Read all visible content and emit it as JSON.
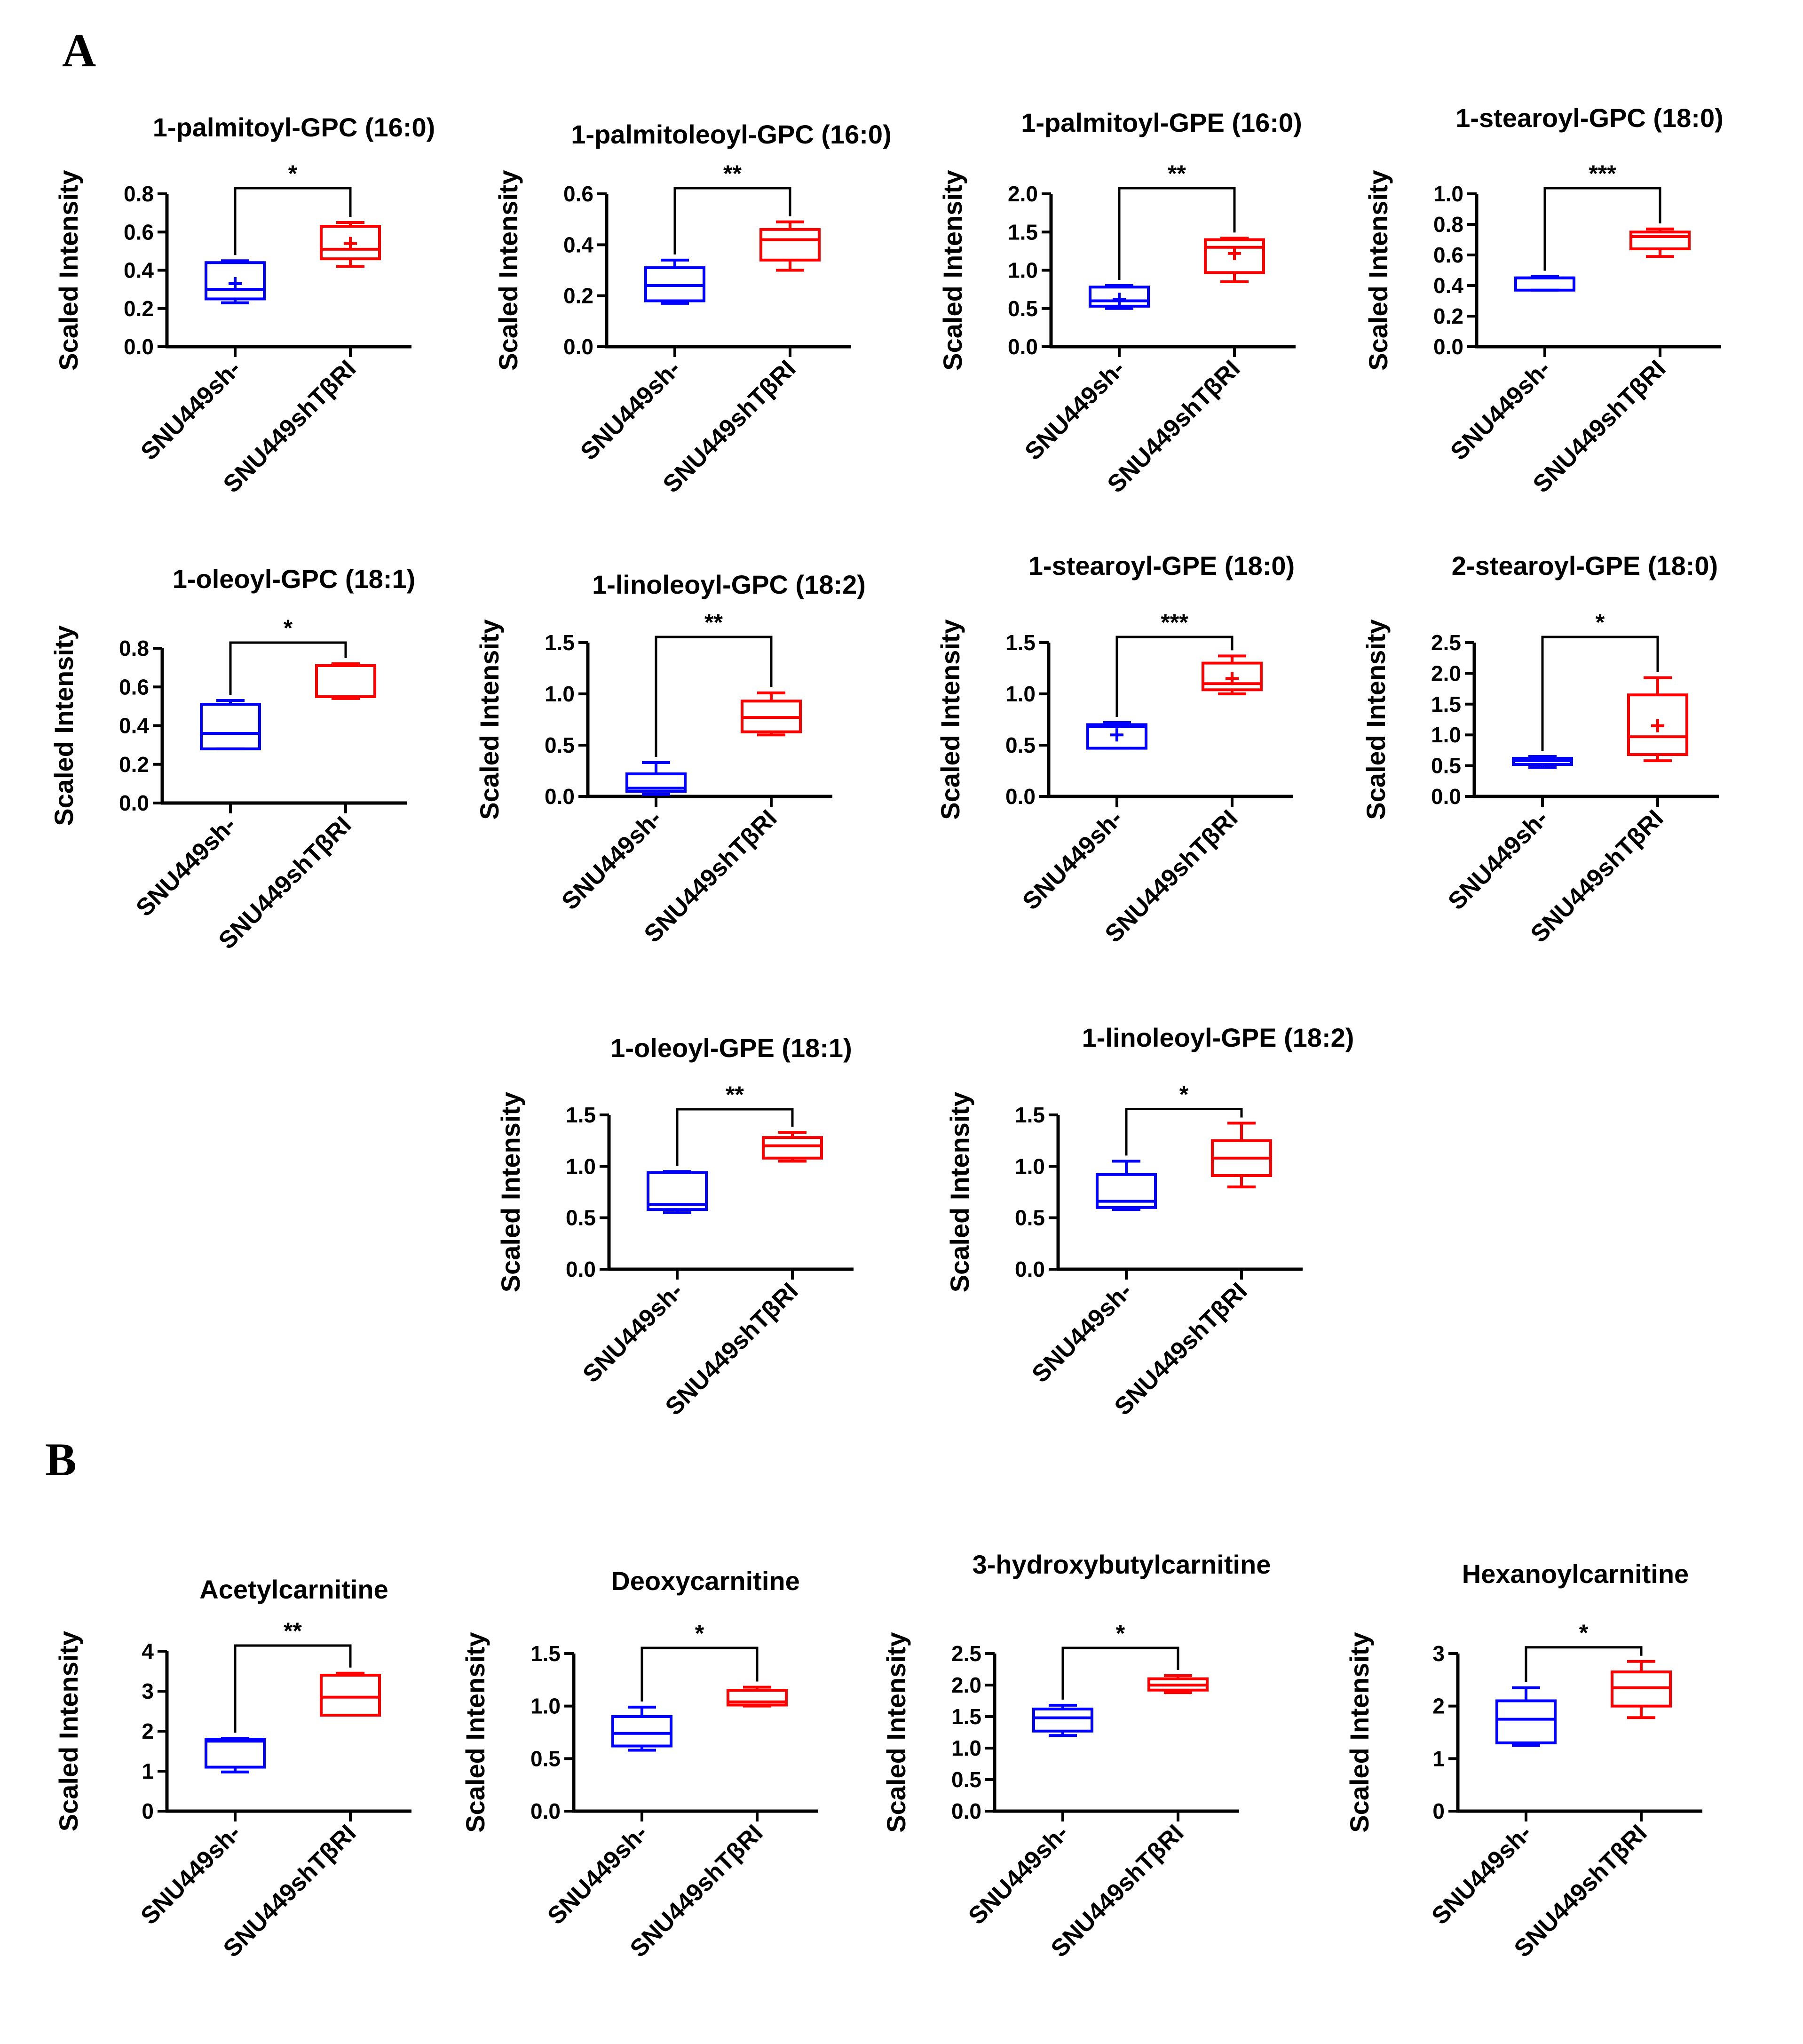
{
  "panel_labels": {
    "a": "A",
    "b": "B"
  },
  "colors": {
    "group1": "#0000ff",
    "group2": "#ff0000",
    "axis": "#000000"
  },
  "common": {
    "ylabel": "Scaled Intensity",
    "categories": [
      "SNU449sh-",
      "SNU449shTβRI"
    ]
  },
  "chart_data": [
    {
      "type": "box",
      "title": "1-palmitoyl-GPC (16:0)",
      "ylabel": "Scaled Intensity",
      "categories": [
        "SNU449sh-",
        "SNU449shTβRI"
      ],
      "ylim": [
        0,
        0.8
      ],
      "yticks": [
        0,
        0.2,
        0.4,
        0.6,
        0.8
      ],
      "ytick_labels": [
        "0.0",
        "0.2",
        "0.4",
        "0.6",
        "0.8"
      ],
      "series": [
        {
          "name": "SNU449sh-",
          "min": 0.23,
          "q1": 0.25,
          "median": 0.3,
          "q3": 0.44,
          "max": 0.45,
          "mean": 0.33
        },
        {
          "name": "SNU449shTβRI",
          "min": 0.42,
          "q1": 0.46,
          "median": 0.51,
          "q3": 0.63,
          "max": 0.65,
          "mean": 0.54
        }
      ],
      "significance": "*"
    },
    {
      "type": "box",
      "title": "1-palmitoleoyl-GPC (16:0)",
      "ylabel": "Scaled Intensity",
      "categories": [
        "SNU449sh-",
        "SNU449shTβRI"
      ],
      "ylim": [
        0,
        0.6
      ],
      "yticks": [
        0,
        0.2,
        0.4,
        0.6
      ],
      "ytick_labels": [
        "0.0",
        "0.2",
        "0.4",
        "0.6"
      ],
      "series": [
        {
          "name": "SNU449sh-",
          "min": 0.17,
          "q1": 0.18,
          "median": 0.24,
          "q3": 0.31,
          "max": 0.34,
          "mean": null
        },
        {
          "name": "SNU449shTβRI",
          "min": 0.3,
          "q1": 0.34,
          "median": 0.42,
          "q3": 0.46,
          "max": 0.49,
          "mean": null
        }
      ],
      "significance": "**"
    },
    {
      "type": "box",
      "title": "1-palmitoyl-GPE (16:0)",
      "ylabel": "Scaled Intensity",
      "categories": [
        "SNU449sh-",
        "SNU449shTβRI"
      ],
      "ylim": [
        0,
        2.0
      ],
      "yticks": [
        0,
        0.5,
        1,
        1.5,
        2
      ],
      "ytick_labels": [
        "0.0",
        "0.5",
        "1.0",
        "1.5",
        "2.0"
      ],
      "series": [
        {
          "name": "SNU449sh-",
          "min": 0.5,
          "q1": 0.53,
          "median": 0.6,
          "q3": 0.78,
          "max": 0.8,
          "mean": 0.62
        },
        {
          "name": "SNU449shTβRI",
          "min": 0.85,
          "q1": 0.97,
          "median": 1.3,
          "q3": 1.4,
          "max": 1.42,
          "mean": 1.22
        }
      ],
      "significance": "**"
    },
    {
      "type": "box",
      "title": "1-stearoyl-GPC (18:0)",
      "ylabel": "Scaled Intensity",
      "categories": [
        "SNU449sh-",
        "SNU449shTβRI"
      ],
      "ylim": [
        0,
        1.0
      ],
      "yticks": [
        0,
        0.2,
        0.4,
        0.6,
        0.8,
        1.0
      ],
      "ytick_labels": [
        "0.0",
        "0.2",
        "0.4",
        "0.6",
        "0.8",
        "1.0"
      ],
      "series": [
        {
          "name": "SNU449sh-",
          "min": 0.37,
          "q1": 0.37,
          "median": 0.45,
          "q3": 0.45,
          "max": 0.46,
          "mean": null
        },
        {
          "name": "SNU449shTβRI",
          "min": 0.59,
          "q1": 0.64,
          "median": 0.72,
          "q3": 0.75,
          "max": 0.77,
          "mean": null
        }
      ],
      "significance": "***"
    },
    {
      "type": "box",
      "title": "1-oleoyl-GPC (18:1)",
      "ylabel": "Scaled Intensity",
      "categories": [
        "SNU449sh-",
        "SNU449shTβRI"
      ],
      "ylim": [
        0,
        0.8
      ],
      "yticks": [
        0,
        0.2,
        0.4,
        0.6,
        0.8
      ],
      "ytick_labels": [
        "0.0",
        "0.2",
        "0.4",
        "0.6",
        "0.8"
      ],
      "series": [
        {
          "name": "SNU449sh-",
          "min": 0.28,
          "q1": 0.28,
          "median": 0.36,
          "q3": 0.51,
          "max": 0.53,
          "mean": null
        },
        {
          "name": "SNU449shTβRI",
          "min": 0.54,
          "q1": 0.55,
          "median": 0.55,
          "q3": 0.71,
          "max": 0.72,
          "mean": null
        }
      ],
      "significance": "*"
    },
    {
      "type": "box",
      "title": "1-linoleoyl-GPC (18:2)",
      "ylabel": "Scaled Intensity",
      "categories": [
        "SNU449sh-",
        "SNU449shTβRI"
      ],
      "ylim": [
        0,
        1.5
      ],
      "yticks": [
        0,
        0.5,
        1,
        1.5
      ],
      "ytick_labels": [
        "0.0",
        "0.5",
        "1.0",
        "1.5"
      ],
      "series": [
        {
          "name": "SNU449sh-",
          "min": 0.02,
          "q1": 0.05,
          "median": 0.08,
          "q3": 0.22,
          "max": 0.33,
          "mean": null
        },
        {
          "name": "SNU449shTβRI",
          "min": 0.6,
          "q1": 0.63,
          "median": 0.77,
          "q3": 0.93,
          "max": 1.01,
          "mean": null
        }
      ],
      "significance": "**"
    },
    {
      "type": "box",
      "title": "1-stearoyl-GPE (18:0)",
      "ylabel": "Scaled Intensity",
      "categories": [
        "SNU449sh-",
        "SNU449shTβRI"
      ],
      "ylim": [
        0,
        1.5
      ],
      "yticks": [
        0,
        0.5,
        1,
        1.5
      ],
      "ytick_labels": [
        "0.0",
        "0.5",
        "1.0",
        "1.5"
      ],
      "series": [
        {
          "name": "SNU449sh-",
          "min": 0.47,
          "q1": 0.47,
          "median": 0.68,
          "q3": 0.7,
          "max": 0.72,
          "mean": 0.6
        },
        {
          "name": "SNU449shTβRI",
          "min": 1.0,
          "q1": 1.04,
          "median": 1.1,
          "q3": 1.3,
          "max": 1.37,
          "mean": 1.15
        }
      ],
      "significance": "***"
    },
    {
      "type": "box",
      "title": "2-stearoyl-GPE (18:0)",
      "ylabel": "Scaled Intensity",
      "categories": [
        "SNU449sh-",
        "SNU449shTβRI"
      ],
      "ylim": [
        0,
        2.5
      ],
      "yticks": [
        0,
        0.5,
        1,
        1.5,
        2,
        2.5
      ],
      "ytick_labels": [
        "0.0",
        "0.5",
        "1.0",
        "1.5",
        "2.0",
        "2.5"
      ],
      "series": [
        {
          "name": "SNU449sh-",
          "min": 0.47,
          "q1": 0.52,
          "median": 0.58,
          "q3": 0.62,
          "max": 0.65,
          "mean": null
        },
        {
          "name": "SNU449shTβRI",
          "min": 0.58,
          "q1": 0.68,
          "median": 0.97,
          "q3": 1.65,
          "max": 1.93,
          "mean": 1.15
        }
      ],
      "significance": "*"
    },
    {
      "type": "box",
      "title": "1-oleoyl-GPE (18:1)",
      "ylabel": "Scaled Intensity",
      "categories": [
        "SNU449sh-",
        "SNU449shTβRI"
      ],
      "ylim": [
        0,
        1.5
      ],
      "yticks": [
        0,
        0.5,
        1,
        1.5
      ],
      "ytick_labels": [
        "0.0",
        "0.5",
        "1.0",
        "1.5"
      ],
      "series": [
        {
          "name": "SNU449sh-",
          "min": 0.55,
          "q1": 0.58,
          "median": 0.63,
          "q3": 0.94,
          "max": 0.95,
          "mean": null
        },
        {
          "name": "SNU449shTβRI",
          "min": 1.05,
          "q1": 1.08,
          "median": 1.2,
          "q3": 1.28,
          "max": 1.33,
          "mean": null
        }
      ],
      "significance": "**"
    },
    {
      "type": "box",
      "title": "1-linoleoyl-GPE (18:2)",
      "ylabel": "Scaled Intensity",
      "categories": [
        "SNU449sh-",
        "SNU449shTβRI"
      ],
      "ylim": [
        0,
        1.5
      ],
      "yticks": [
        0,
        0.5,
        1,
        1.5
      ],
      "ytick_labels": [
        "0.0",
        "0.5",
        "1.0",
        "1.5"
      ],
      "series": [
        {
          "name": "SNU449sh-",
          "min": 0.58,
          "q1": 0.6,
          "median": 0.66,
          "q3": 0.92,
          "max": 1.05,
          "mean": null
        },
        {
          "name": "SNU449shTβRI",
          "min": 0.8,
          "q1": 0.91,
          "median": 1.08,
          "q3": 1.25,
          "max": 1.42,
          "mean": null
        }
      ],
      "significance": "*"
    },
    {
      "type": "box",
      "title": "Acetylcarnitine",
      "ylabel": "Scaled Intensity",
      "categories": [
        "SNU449sh-",
        "SNU449shTβRI"
      ],
      "ylim": [
        0,
        4
      ],
      "yticks": [
        0,
        1,
        2,
        3,
        4
      ],
      "ytick_labels": [
        "0",
        "1",
        "2",
        "3",
        "4"
      ],
      "series": [
        {
          "name": "SNU449sh-",
          "min": 0.98,
          "q1": 1.1,
          "median": 1.75,
          "q3": 1.8,
          "max": 1.82,
          "mean": null
        },
        {
          "name": "SNU449shTβRI",
          "min": 2.4,
          "q1": 2.4,
          "median": 2.85,
          "q3": 3.4,
          "max": 3.45,
          "mean": null
        }
      ],
      "significance": "**"
    },
    {
      "type": "box",
      "title": "Deoxycarnitine",
      "ylabel": "Scaled Intensity",
      "categories": [
        "SNU449sh-",
        "SNU449shTβRI"
      ],
      "ylim": [
        0,
        1.5
      ],
      "yticks": [
        0,
        0.5,
        1,
        1.5
      ],
      "ytick_labels": [
        "0.0",
        "0.5",
        "1.0",
        "1.5"
      ],
      "series": [
        {
          "name": "SNU449sh-",
          "min": 0.58,
          "q1": 0.62,
          "median": 0.74,
          "q3": 0.9,
          "max": 0.99,
          "mean": null
        },
        {
          "name": "SNU449shTβRI",
          "min": 1.0,
          "q1": 1.01,
          "median": 1.04,
          "q3": 1.15,
          "max": 1.18,
          "mean": null
        }
      ],
      "significance": "*"
    },
    {
      "type": "box",
      "title": "3-hydroxybutylcarnitine",
      "ylabel": "Scaled Intensity",
      "categories": [
        "SNU449sh-",
        "SNU449shTβRI"
      ],
      "ylim": [
        0,
        2.5
      ],
      "yticks": [
        0,
        0.5,
        1,
        1.5,
        2,
        2.5
      ],
      "ytick_labels": [
        "0.0",
        "0.5",
        "1.0",
        "1.5",
        "2.0",
        "2.5"
      ],
      "series": [
        {
          "name": "SNU449sh-",
          "min": 1.2,
          "q1": 1.27,
          "median": 1.48,
          "q3": 1.62,
          "max": 1.68,
          "mean": null
        },
        {
          "name": "SNU449shTβRI",
          "min": 1.88,
          "q1": 1.92,
          "median": 2.0,
          "q3": 2.1,
          "max": 2.15,
          "mean": null
        }
      ],
      "significance": "*"
    },
    {
      "type": "box",
      "title": "Hexanoylcarnitine",
      "ylabel": "Scaled Intensity",
      "categories": [
        "SNU449sh-",
        "SNU449shTβRI"
      ],
      "ylim": [
        0,
        3
      ],
      "yticks": [
        0,
        1,
        2,
        3
      ],
      "ytick_labels": [
        "0",
        "1",
        "2",
        "3"
      ],
      "series": [
        {
          "name": "SNU449sh-",
          "min": 1.25,
          "q1": 1.3,
          "median": 1.75,
          "q3": 2.1,
          "max": 2.35,
          "mean": null
        },
        {
          "name": "SNU449shTβRI",
          "min": 1.78,
          "q1": 2.0,
          "median": 2.35,
          "q3": 2.65,
          "max": 2.85,
          "mean": null
        }
      ],
      "significance": "*"
    }
  ]
}
